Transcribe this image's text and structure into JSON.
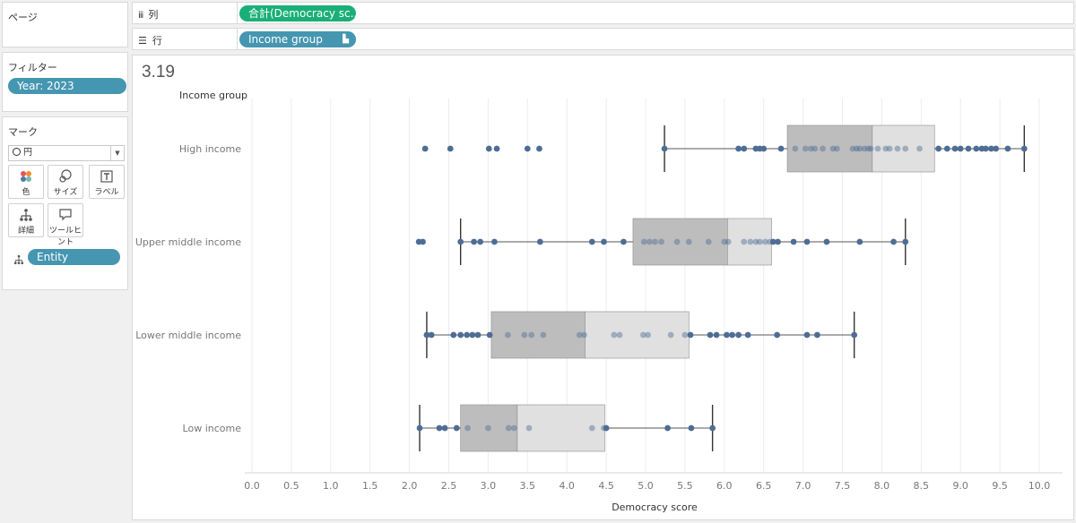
{
  "pages_card": {
    "title": "ページ"
  },
  "filters_card": {
    "title": "フィルター",
    "filter_pill": "Year: 2023"
  },
  "marks_card": {
    "title": "マーク",
    "mark_type": "円",
    "buttons": [
      {
        "label": "色",
        "icon": "color-icon"
      },
      {
        "label": "サイズ",
        "icon": "size-icon"
      },
      {
        "label": "ラベル",
        "icon": "label-icon"
      },
      {
        "label": "詳細",
        "icon": "detail-icon"
      },
      {
        "label": "ツールヒント",
        "icon": "tooltip-icon"
      }
    ],
    "detail_pill": "Entity"
  },
  "shelves": {
    "columns_label": "列",
    "columns_pill": "合計(Democracy sc..",
    "rows_label": "行",
    "rows_pill": "Income group"
  },
  "sheet_title": "3.19",
  "colors": {
    "dot": "#4e6d94",
    "box_lower": "#bdbdbd",
    "box_upper": "#e0e0e0",
    "pill_teal": "#4596b1",
    "pill_green": "#1aaf78"
  },
  "chart_data": {
    "type": "boxplot",
    "title": "3.19",
    "xlabel": "Democracy score",
    "ylabel": "Income group",
    "xlim": [
      0,
      10
    ],
    "xticks": [
      "0.0",
      "0.5",
      "1.0",
      "1.5",
      "2.0",
      "2.5",
      "3.0",
      "3.5",
      "4.0",
      "4.5",
      "5.0",
      "5.5",
      "6.0",
      "6.5",
      "7.0",
      "7.5",
      "8.0",
      "8.5",
      "9.0",
      "9.5",
      "10.0"
    ],
    "grid": true,
    "categories": [
      "High income",
      "Upper middle income",
      "Lower middle income",
      "Low income"
    ],
    "groups": [
      {
        "name": "High income",
        "whisker_low": 5.24,
        "q1": 6.8,
        "median": 7.88,
        "q3": 8.67,
        "whisker_high": 9.81,
        "points": [
          2.2,
          2.52,
          3.01,
          3.11,
          3.5,
          3.65,
          5.24,
          6.18,
          6.25,
          6.4,
          6.45,
          6.5,
          6.72,
          6.9,
          7.03,
          7.1,
          7.15,
          7.25,
          7.38,
          7.43,
          7.63,
          7.68,
          7.72,
          7.78,
          7.83,
          7.86,
          7.95,
          8.05,
          8.1,
          8.2,
          8.3,
          8.48,
          8.72,
          8.83,
          8.93,
          9.0,
          9.1,
          9.2,
          9.27,
          9.32,
          9.39,
          9.45,
          9.6,
          9.81
        ]
      },
      {
        "name": "Upper middle income",
        "whisker_low": 2.65,
        "q1": 4.84,
        "median": 6.04,
        "q3": 6.6,
        "whisker_high": 8.3,
        "points": [
          2.12,
          2.17,
          2.65,
          2.82,
          2.9,
          3.08,
          3.66,
          4.32,
          4.47,
          4.72,
          4.98,
          5.05,
          5.12,
          5.2,
          5.4,
          5.55,
          5.8,
          6.0,
          6.05,
          6.25,
          6.33,
          6.4,
          6.45,
          6.52,
          6.58,
          6.62,
          6.68,
          6.88,
          7.05,
          7.3,
          7.72,
          8.15,
          8.3
        ]
      },
      {
        "name": "Lower middle income",
        "whisker_low": 2.22,
        "q1": 3.04,
        "median": 4.23,
        "q3": 5.55,
        "whisker_high": 7.65,
        "points": [
          2.22,
          2.28,
          2.56,
          2.65,
          2.73,
          2.8,
          2.87,
          3.02,
          3.25,
          3.46,
          3.55,
          3.7,
          4.16,
          4.22,
          4.6,
          4.67,
          4.97,
          5.03,
          5.32,
          5.5,
          5.57,
          5.82,
          5.9,
          6.03,
          6.1,
          6.18,
          6.3,
          6.67,
          7.05,
          7.18,
          7.65
        ]
      },
      {
        "name": "Low income",
        "whisker_low": 2.13,
        "q1": 2.65,
        "median": 3.37,
        "q3": 4.48,
        "whisker_high": 5.85,
        "points": [
          2.13,
          2.38,
          2.45,
          2.6,
          2.74,
          3.0,
          3.26,
          3.33,
          3.52,
          4.32,
          4.47,
          4.5,
          5.28,
          5.58,
          5.85
        ]
      }
    ]
  }
}
